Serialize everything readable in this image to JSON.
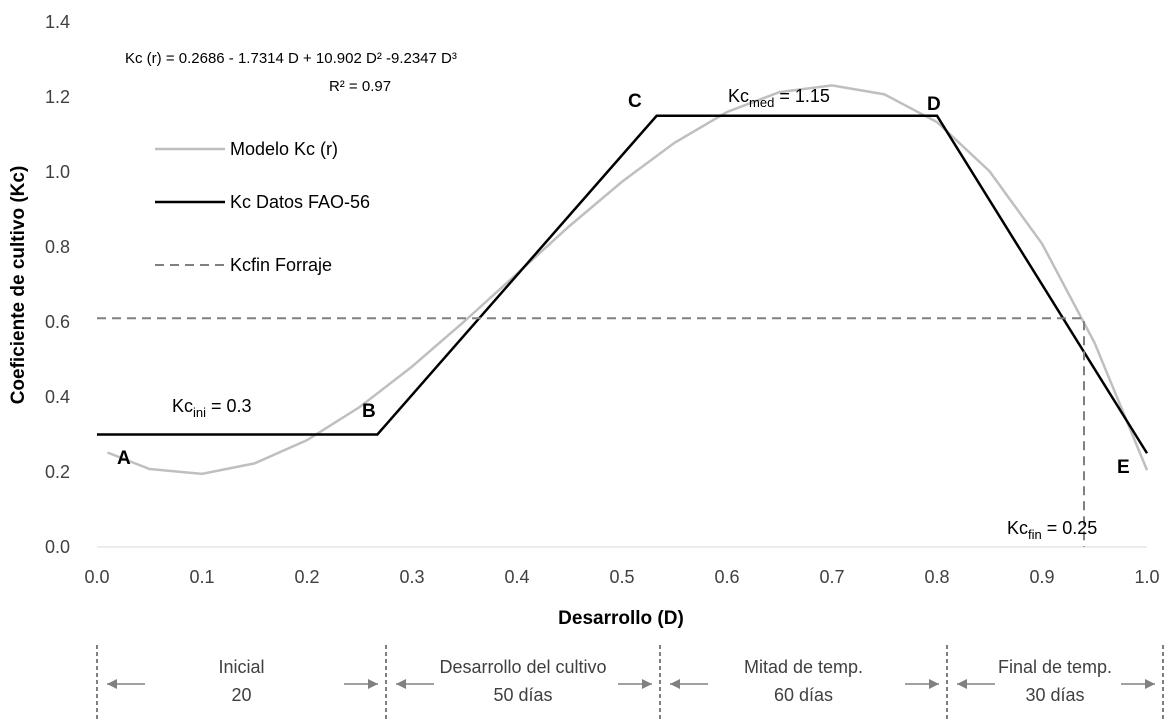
{
  "chart_data": {
    "type": "line",
    "x_label": "Desarrollo (D)",
    "y_label": "Coeficiente de cultivo (Kc)",
    "xlim": [
      0,
      1
    ],
    "ylim": [
      0,
      1.4
    ],
    "xticks": [
      {
        "value": 0,
        "label": "0.0"
      },
      0.1,
      0.2,
      0.3,
      0.4,
      0.5,
      0.6,
      0.7,
      0.8,
      0.9,
      {
        "value": 1,
        "label": "1.0"
      }
    ],
    "yticks": [
      {
        "value": 0,
        "label": "0.0"
      },
      0.2,
      0.4,
      0.6,
      0.8,
      {
        "value": 1,
        "label": "1.0"
      },
      1.2,
      1.4
    ],
    "grid": false,
    "legend": "upper left",
    "series": [
      {
        "name": "Modelo Kc (r)",
        "color": "#bfbfbf",
        "dash": false,
        "x": [
          0.01,
          0.05,
          0.1,
          0.15,
          0.2,
          0.25,
          0.3,
          0.35,
          0.4,
          0.45,
          0.5,
          0.55,
          0.6,
          0.65,
          0.7,
          0.75,
          0.8,
          0.85,
          0.9,
          0.95,
          1.0
        ],
        "values": [
          0.252,
          0.208,
          0.195,
          0.223,
          0.285,
          0.373,
          0.481,
          0.602,
          0.729,
          0.856,
          0.974,
          1.078,
          1.16,
          1.213,
          1.231,
          1.207,
          1.133,
          1.002,
          0.809,
          0.545,
          0.205
        ]
      },
      {
        "name": "Kc Datos FAO-56",
        "color": "#000000",
        "dash": false,
        "x": [
          0,
          0.267,
          0.533,
          0.8,
          1.0
        ],
        "values": [
          0.3,
          0.3,
          1.15,
          1.15,
          0.25
        ]
      },
      {
        "name": "Kcfin Forraje",
        "color": "#808080",
        "dash": true,
        "x": [
          0,
          0.94,
          0.94
        ],
        "values": [
          0.61,
          0.61,
          0
        ]
      }
    ],
    "points": [
      "A",
      "B",
      "C",
      "D",
      "E"
    ],
    "equation": "Kc (r) =  0.2686 - 1.7314 D + 10.902 D² -9.2347 D³",
    "r_squared": "R² = 0.97",
    "kc_labels": [
      {
        "text": "Kc",
        "sub": "ini",
        "rest": " = 0.3"
      },
      {
        "text": "Kc",
        "sub": "med",
        "rest": " = 1.15"
      },
      {
        "text": "Kc",
        "sub": "fin",
        "rest": " = 0.25"
      }
    ],
    "phases": [
      {
        "name": "Inicial",
        "days": "20"
      },
      {
        "name": "Desarrollo del cultivo",
        "days": "50 días"
      },
      {
        "name": "Mitad de temp.",
        "days": "60 días"
      },
      {
        "name": "Final de temp.",
        "days": "30 días"
      }
    ]
  }
}
